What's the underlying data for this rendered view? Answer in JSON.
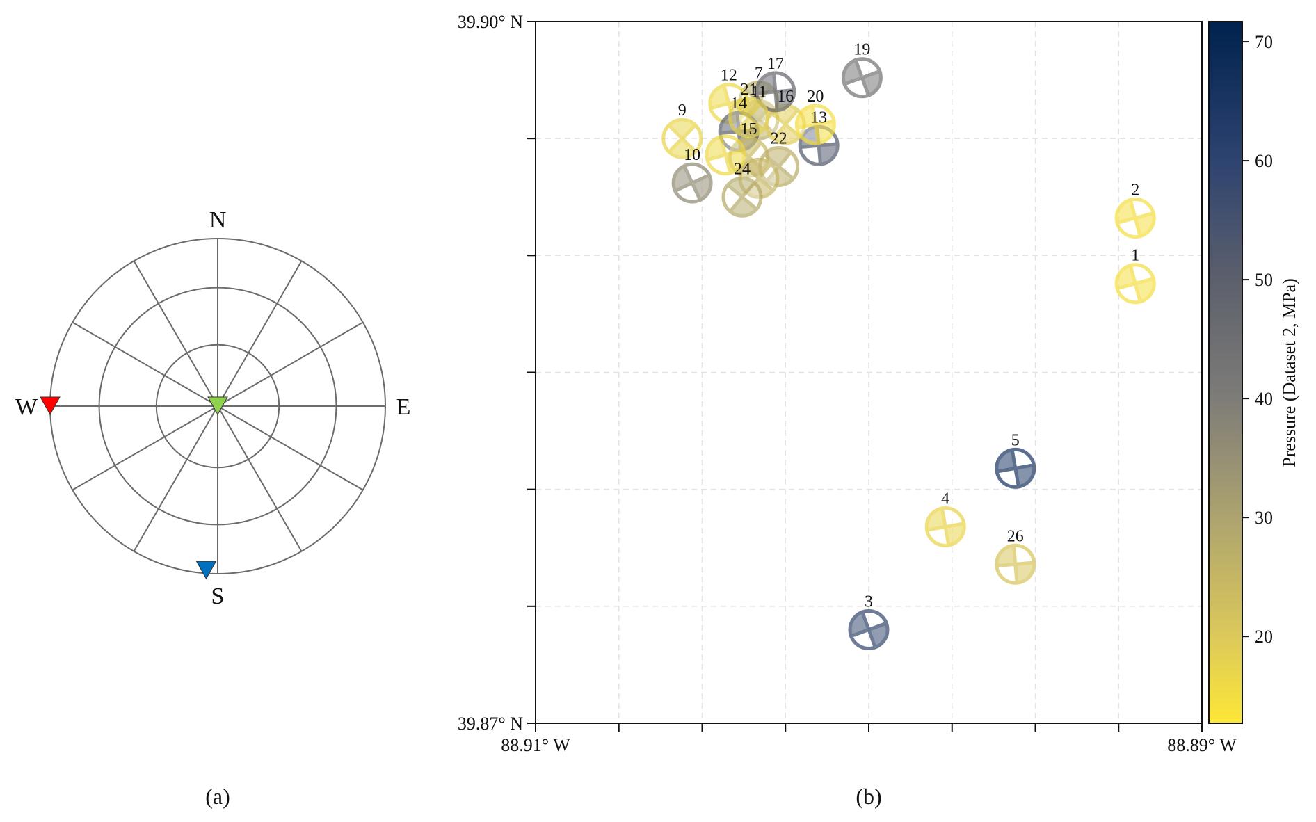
{
  "panels": {
    "a": {
      "caption": "(a)"
    },
    "b": {
      "caption": "(b)"
    }
  },
  "chart_data": [
    {
      "type": "scatter",
      "subtype": "polar-stereonet",
      "panel": "a",
      "title": "",
      "direction_labels": {
        "north": "N",
        "south": "S",
        "east": "E",
        "west": "W"
      },
      "rings_plunge_deg": [
        60,
        30,
        0
      ],
      "radial_spokes_every_deg": 30,
      "grid": true,
      "points": [
        {
          "name": "axis-red",
          "azimuth_deg": 270,
          "plunge_deg": 0,
          "color": "#ff0000"
        },
        {
          "name": "axis-green",
          "azimuth_deg": 0,
          "plunge_deg": 90,
          "color": "#8fd14f"
        },
        {
          "name": "axis-blue",
          "azimuth_deg": 184,
          "plunge_deg": 2,
          "color": "#0070c0"
        }
      ]
    },
    {
      "type": "scatter",
      "subtype": "focal-mechanism-map",
      "panel": "b",
      "title": "",
      "xlabel": "",
      "ylabel": "",
      "xlim": [
        -88.91,
        -88.89
      ],
      "ylim": [
        39.87,
        39.9
      ],
      "x_tick_labels": [
        "88.91° W",
        "",
        "",
        "",
        "",
        "",
        "",
        "",
        "88.89° W"
      ],
      "y_tick_labels": [
        "39.87° N",
        "",
        "",
        "",
        "",
        "",
        "39.90° N"
      ],
      "x_tick_count": 9,
      "y_tick_count": 7,
      "grid": true,
      "colorbar": {
        "label": "Pressure (Dataset 2, MPa)",
        "range": [
          12.7,
          71.7
        ],
        "ticks": [
          20,
          30,
          40,
          50,
          60,
          70
        ],
        "colormap": "cividis_r",
        "stops": [
          {
            "v": 12.7,
            "c": "#fde737"
          },
          {
            "v": 20,
            "c": "#dcc95a"
          },
          {
            "v": 30,
            "c": "#ada36f"
          },
          {
            "v": 40,
            "c": "#7e7c78"
          },
          {
            "v": 50,
            "c": "#5c606c"
          },
          {
            "v": 60,
            "c": "#2e4370"
          },
          {
            "v": 71.7,
            "c": "#00224e"
          }
        ]
      },
      "events": [
        {
          "id": "1",
          "lon": -88.892,
          "lat": 39.8888,
          "pressure": 15,
          "planes": [
            -15,
            75
          ],
          "show_label": true
        },
        {
          "id": "2",
          "lon": -88.892,
          "lat": 39.8916,
          "pressure": 15,
          "planes": [
            -15,
            75
          ],
          "show_label": true
        },
        {
          "id": "3",
          "lon": -88.9,
          "lat": 39.874,
          "pressure": 58,
          "planes": [
            -20,
            70
          ],
          "show_label": true
        },
        {
          "id": "4",
          "lon": -88.8977,
          "lat": 39.8784,
          "pressure": 17,
          "planes": [
            -10,
            80
          ],
          "show_label": true
        },
        {
          "id": "5",
          "lon": -88.8956,
          "lat": 39.8809,
          "pressure": 64,
          "planes": [
            -10,
            80
          ],
          "show_label": true
        },
        {
          "id": "7",
          "lon": -88.9033,
          "lat": 39.8966,
          "pressure": 27,
          "planes": [
            40,
            130
          ],
          "show_label": true
        },
        {
          "id": "9",
          "lon": -88.9056,
          "lat": 39.895,
          "pressure": 17,
          "planes": [
            45,
            135
          ],
          "show_label": true
        },
        {
          "id": "10",
          "lon": -88.9053,
          "lat": 39.8931,
          "pressure": 36,
          "planes": [
            -25,
            65
          ],
          "show_label": true
        },
        {
          "id": "11",
          "lon": -88.9033,
          "lat": 39.8958,
          "pressure": 26,
          "planes": [
            40,
            130
          ],
          "show_label": true
        },
        {
          "id": "12",
          "lon": -88.9042,
          "lat": 39.8965,
          "pressure": 16,
          "planes": [
            -15,
            75
          ],
          "show_label": true
        },
        {
          "id": "13",
          "lon": -88.9015,
          "lat": 39.8947,
          "pressure": 52,
          "planes": [
            -5,
            85
          ],
          "show_label": true
        },
        {
          "id": "14",
          "lon": -88.9039,
          "lat": 39.8953,
          "pressure": 50,
          "planes": [
            -5,
            85
          ],
          "show_label": true
        },
        {
          "id": "15",
          "lon": -88.9036,
          "lat": 39.8942,
          "pressure": 24,
          "planes": [
            40,
            130
          ],
          "show_label": true
        },
        {
          "id": "16",
          "lon": -88.9025,
          "lat": 39.8956,
          "pressure": 19,
          "planes": [
            40,
            130
          ],
          "show_label": true
        },
        {
          "id": "17",
          "lon": -88.9028,
          "lat": 39.897,
          "pressure": 47,
          "planes": [
            -5,
            85
          ],
          "show_label": true
        },
        {
          "id": "18",
          "lon": -88.9043,
          "lat": 39.8943,
          "pressure": 16,
          "planes": [
            -15,
            75
          ],
          "show_label": false
        },
        {
          "id": "19",
          "lon": -88.9002,
          "lat": 39.8976,
          "pressure": 43,
          "planes": [
            -20,
            70
          ],
          "show_label": true
        },
        {
          "id": "20",
          "lon": -88.9016,
          "lat": 39.8956,
          "pressure": 15,
          "planes": [
            -10,
            80
          ],
          "show_label": true
        },
        {
          "id": "21",
          "lon": -88.9036,
          "lat": 39.8959,
          "pressure": 18,
          "planes": [
            40,
            130
          ],
          "show_label": true
        },
        {
          "id": "22",
          "lon": -88.9027,
          "lat": 39.8938,
          "pressure": 27,
          "planes": [
            40,
            130
          ],
          "show_label": true
        },
        {
          "id": "23",
          "lon": -88.9033,
          "lat": 39.8933,
          "pressure": 25,
          "planes": [
            40,
            130
          ],
          "show_label": false
        },
        {
          "id": "24",
          "lon": -88.9038,
          "lat": 39.8925,
          "pressure": 28,
          "planes": [
            40,
            130
          ],
          "show_label": true
        },
        {
          "id": "26",
          "lon": -88.8956,
          "lat": 39.8768,
          "pressure": 21,
          "planes": [
            -5,
            85
          ],
          "show_label": true
        }
      ]
    }
  ]
}
